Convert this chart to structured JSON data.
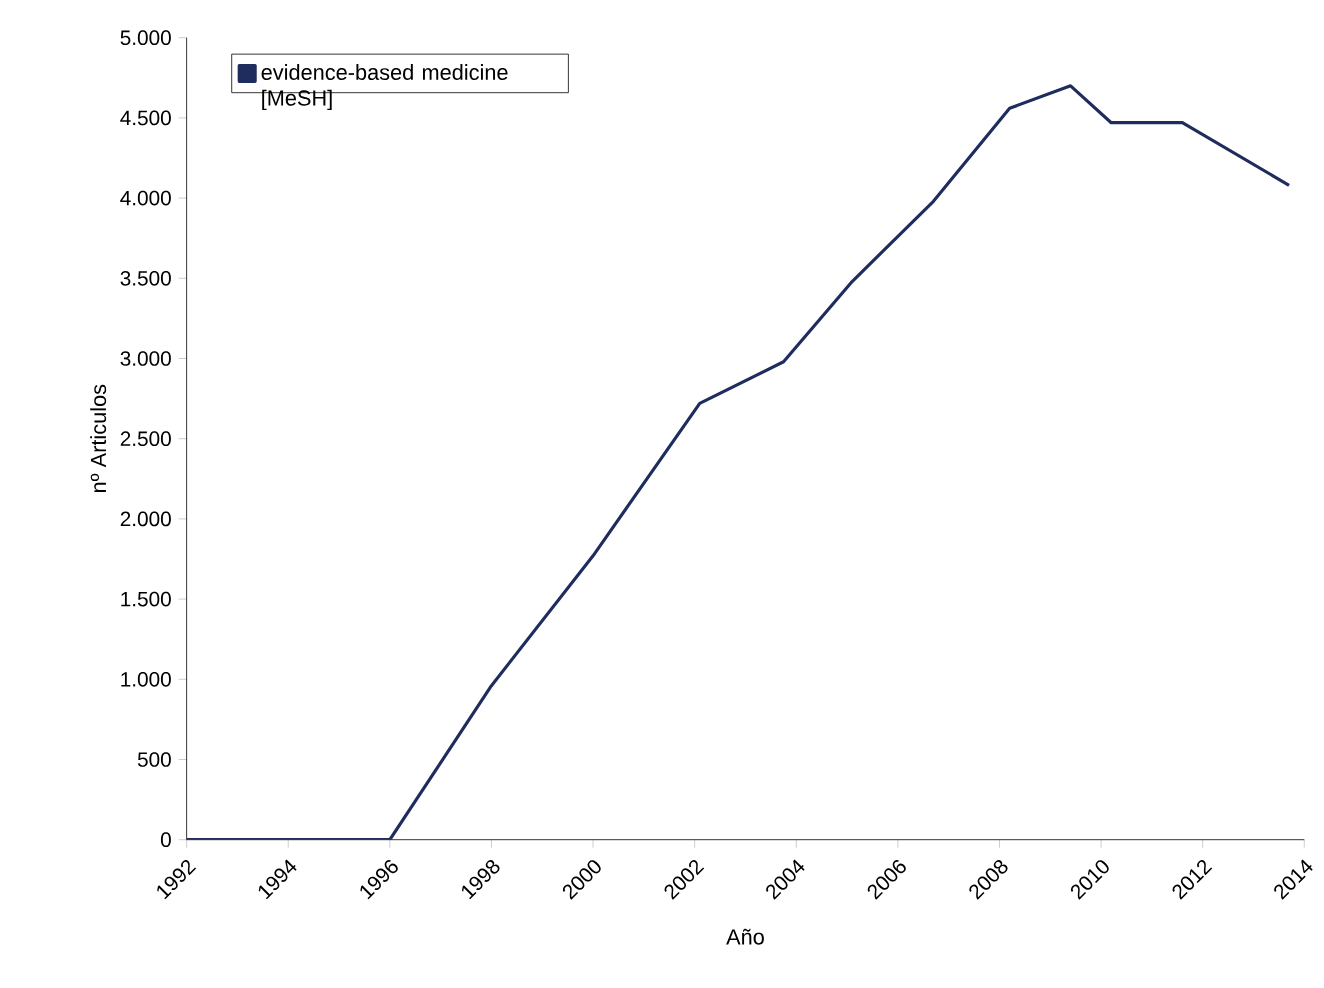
{
  "chart_data": {
    "type": "line",
    "xlabel": "Año",
    "ylabel": "nº Articulos",
    "x": [
      1992,
      1996,
      1998,
      2000,
      2002.1,
      2003.75,
      2005.1,
      2006.7,
      2008.2,
      2009.4,
      2010.2,
      2011.6,
      2013.7
    ],
    "series": [
      {
        "name": "evidence-based medicine [MeSH]",
        "color": "#1f2d5e",
        "values": [
          0,
          0,
          960,
          1770,
          2720,
          2980,
          3480,
          3980,
          4560,
          4700,
          4470,
          4470,
          4080
        ]
      }
    ],
    "xlim": [
      1992,
      2014
    ],
    "xticks": [
      1992,
      1994,
      1996,
      1998,
      2000,
      2002,
      2004,
      2006,
      2008,
      2010,
      2012,
      2014
    ],
    "ylim": [
      0,
      5000
    ],
    "yticks": [
      0,
      500,
      {
        "value": 1000,
        "label": "1.000"
      },
      {
        "value": 1500,
        "label": "1.500"
      },
      {
        "value": 2000,
        "label": "2.000"
      },
      {
        "value": 2500,
        "label": "2.500"
      },
      {
        "value": 3000,
        "label": "3.000"
      },
      {
        "value": 3500,
        "label": "3.500"
      },
      {
        "value": 4000,
        "label": "4.000"
      },
      {
        "value": 4500,
        "label": "4.500"
      },
      {
        "value": 5000,
        "label": "5.000"
      }
    ],
    "legend": "top left",
    "grid": false,
    "marker": "none",
    "line_style": "solid"
  }
}
